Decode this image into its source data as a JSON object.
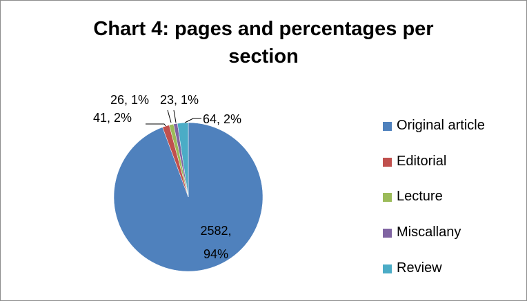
{
  "chart_data": {
    "type": "pie",
    "title": "Chart 4: pages and percentages per section",
    "categories": [
      "Original article",
      "Editorial",
      "Lecture",
      "Miscallany",
      "Review"
    ],
    "values": [
      2582,
      41,
      26,
      23,
      64
    ],
    "value_labels": [
      "2582, 94%",
      "41, 2%",
      "26, 1%",
      "23, 1%",
      "64, 2%"
    ],
    "colors": [
      "#4f81bd",
      "#c0504d",
      "#9bbb59",
      "#8064a2",
      "#4bacc6"
    ],
    "legend": "right"
  }
}
